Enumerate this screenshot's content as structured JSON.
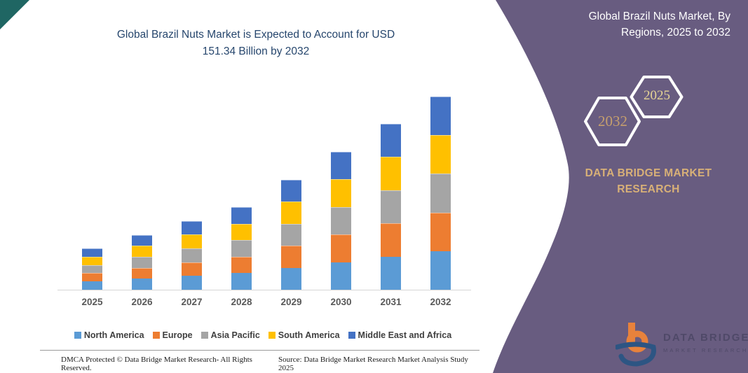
{
  "header": {
    "title_lines": [
      "Global Brazil Nuts Market is Expected to Account for USD",
      "151.34 Billion by 2032"
    ]
  },
  "chart_data": {
    "type": "bar",
    "stacked": true,
    "title": "Global Brazil Nuts Market is Expected to Account for USD 151.34 Billion by 2032",
    "xlabel": "",
    "ylabel": "",
    "unit": "USD Billion",
    "categories": [
      "2025",
      "2026",
      "2027",
      "2028",
      "2029",
      "2030",
      "2031",
      "2032"
    ],
    "series": [
      {
        "name": "North America",
        "color": "#5B9BD5",
        "values": [
          6.48,
          8.6,
          10.78,
          12.96,
          17.28,
          21.64,
          26.02,
          30.27
        ]
      },
      {
        "name": "Europe",
        "color": "#ED7D31",
        "values": [
          6.48,
          8.6,
          10.78,
          12.96,
          17.28,
          21.64,
          26.02,
          30.27
        ]
      },
      {
        "name": "Asia Pacific",
        "color": "#A5A5A5",
        "values": [
          6.48,
          8.6,
          10.78,
          12.96,
          17.28,
          21.64,
          26.02,
          30.27
        ]
      },
      {
        "name": "South America",
        "color": "#FFC000",
        "values": [
          6.48,
          8.6,
          10.78,
          12.96,
          17.28,
          21.64,
          26.02,
          30.27
        ]
      },
      {
        "name": "Middle East and Africa",
        "color": "#4472C4",
        "values": [
          6.48,
          8.6,
          10.78,
          12.96,
          17.28,
          21.64,
          26.02,
          30.27
        ]
      }
    ],
    "totals": [
      32.4,
      43.0,
      53.9,
      64.8,
      86.4,
      108.2,
      130.1,
      151.34
    ],
    "ylim": [
      0,
      155
    ],
    "y_axis_visible": false,
    "gridlines": false,
    "legend_position": "bottom"
  },
  "panel": {
    "background_color": "#685C80",
    "accent_text_color": "#d8b077",
    "title_lines": [
      "Global Brazil Nuts Market, By",
      "Regions, 2025 to 2032"
    ],
    "hexagons": [
      {
        "label": "2032"
      },
      {
        "label": "2025"
      }
    ],
    "brand_lines": [
      "DATA BRIDGE MARKET",
      "RESEARCH"
    ],
    "logo": {
      "title": "DATA BRIDGE",
      "subtitle": "MARKET RESEARCH"
    }
  },
  "footer": {
    "dmca": "DMCA Protected © Data Bridge Market Research- All Rights Reserved.",
    "source": "Source: Data Bridge Market Research Market Analysis Study 2025"
  }
}
